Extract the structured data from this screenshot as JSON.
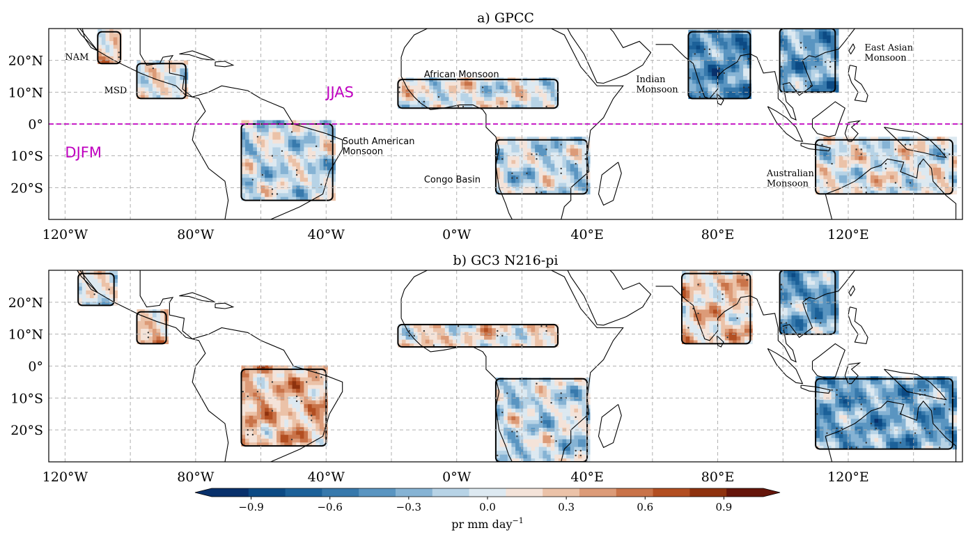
{
  "chart_data": [
    {
      "type": "heatmap",
      "panel": "a",
      "title": "a) GPCC",
      "projection": "equirectangular map, longitude 125°W–155°E, latitude 30°S–30°N",
      "xlim": [
        -125,
        155
      ],
      "ylim": [
        -30,
        30
      ],
      "xticks": [
        -120,
        -80,
        -40,
        0,
        40,
        80,
        120
      ],
      "xtick_labels": [
        "120°W",
        "80°W",
        "40°W",
        "0°W",
        "40°E",
        "80°E",
        "120°E"
      ],
      "yticks": [
        20,
        10,
        0,
        -10,
        -20
      ],
      "ytick_labels": [
        "20°N",
        "10°N",
        "0°",
        "10°S",
        "20°S"
      ],
      "grid": true,
      "equator_line": {
        "lat": 0,
        "color": "#c000c0",
        "style": "dashed"
      },
      "season_labels": [
        {
          "text": "JJAS",
          "lon": -40,
          "lat": 10
        },
        {
          "text": "DJFM",
          "lon": -120,
          "lat": -9
        }
      ],
      "region_labels": [
        {
          "text": "NAM",
          "lon": -120,
          "lat": 21,
          "font": "serif"
        },
        {
          "text": "MSD",
          "lon": -108,
          "lat": 10.5,
          "font": "serif"
        },
        {
          "text": "African Monsoon",
          "lon": -10,
          "lat": 15.5,
          "font": "sans"
        },
        {
          "text": "Indian",
          "lon": 55,
          "lat": 14,
          "font": "serif"
        },
        {
          "text": " Monsoon",
          "lon": 55,
          "lat": 10.8,
          "font": "serif"
        },
        {
          "text": "East Asian",
          "lon": 125,
          "lat": 24,
          "font": "serif"
        },
        {
          "text": " Monsoon",
          "lon": 125,
          "lat": 20.8,
          "font": "serif"
        },
        {
          "text": "South American",
          "lon": -35,
          "lat": -5.5,
          "font": "sans"
        },
        {
          "text": " Monsoon",
          "lon": -35,
          "lat": -8.7,
          "font": "sans"
        },
        {
          "text": "Congo Basin",
          "lon": -10,
          "lat": -17.5,
          "font": "sans"
        },
        {
          "text": "Australian",
          "lon": 95,
          "lat": -15.5,
          "font": "serif"
        },
        {
          "text": " Monsoon",
          "lon": 95,
          "lat": -18.7,
          "font": "serif"
        }
      ],
      "regions": [
        {
          "name": "NAM",
          "lon": [
            -110,
            -103
          ],
          "lat": [
            19,
            29
          ],
          "mean": 0.3
        },
        {
          "name": "MSD",
          "lon": [
            -98,
            -83
          ],
          "lat": [
            8,
            19
          ],
          "mean": 0.1
        },
        {
          "name": "South American Monsoon",
          "lon": [
            -66,
            -38
          ],
          "lat": [
            -24,
            0
          ],
          "mean": 0.0
        },
        {
          "name": "African Monsoon",
          "lon": [
            -18,
            31
          ],
          "lat": [
            5,
            14
          ],
          "mean": 0.1
        },
        {
          "name": "Congo Basin",
          "lon": [
            12,
            40
          ],
          "lat": [
            -22,
            -5
          ],
          "mean": 0.0
        },
        {
          "name": "Indian Monsoon",
          "lon": [
            71,
            90
          ],
          "lat": [
            8,
            29
          ],
          "mean": -0.4
        },
        {
          "name": "East Asian Monsoon",
          "lon": [
            99,
            116
          ],
          "lat": [
            10,
            30
          ],
          "mean": -0.3
        },
        {
          "name": "Australian Monsoon",
          "lon": [
            110,
            152
          ],
          "lat": [
            -22,
            -5
          ],
          "mean": 0.1
        }
      ]
    },
    {
      "type": "heatmap",
      "panel": "b",
      "title": "b) GC3 N216-pi",
      "projection": "equirectangular map, longitude 125°W–155°E, latitude 30°S–30°N",
      "xlim": [
        -125,
        155
      ],
      "ylim": [
        -30,
        30
      ],
      "xticks": [
        -120,
        -80,
        -40,
        0,
        40,
        80,
        120
      ],
      "xtick_labels": [
        "120°W",
        "80°W",
        "40°W",
        "0°W",
        "40°E",
        "80°E",
        "120°E"
      ],
      "yticks": [
        20,
        10,
        0,
        -10,
        -20
      ],
      "ytick_labels": [
        "20°N",
        "10°N",
        "0°",
        "10°S",
        "20°S"
      ],
      "grid": true,
      "regions": [
        {
          "name": "NAM",
          "lon": [
            -116,
            -105
          ],
          "lat": [
            19,
            29
          ],
          "mean": 0.1
        },
        {
          "name": "MSD",
          "lon": [
            -98,
            -89
          ],
          "lat": [
            7,
            17
          ],
          "mean": 0.4
        },
        {
          "name": "South American Monsoon",
          "lon": [
            -66,
            -40
          ],
          "lat": [
            -25,
            -1
          ],
          "mean": 0.4
        },
        {
          "name": "African Monsoon",
          "lon": [
            -18,
            31
          ],
          "lat": [
            6,
            13
          ],
          "mean": 0.2
        },
        {
          "name": "Congo Basin",
          "lon": [
            12,
            40
          ],
          "lat": [
            -30,
            -4
          ],
          "mean": 0.0
        },
        {
          "name": "Indian Monsoon",
          "lon": [
            69,
            90
          ],
          "lat": [
            7,
            29
          ],
          "mean": 0.3
        },
        {
          "name": "East Asian Monsoon",
          "lon": [
            99,
            116
          ],
          "lat": [
            10,
            30
          ],
          "mean": -0.3
        },
        {
          "name": "Australian Monsoon",
          "lon": [
            110,
            152
          ],
          "lat": [
            -26,
            -4
          ],
          "mean": -0.3
        }
      ]
    }
  ],
  "colorbar": {
    "label": "pr mm day",
    "label_sup": "−1",
    "vmin": -1.05,
    "vmax": 1.05,
    "step": 0.15,
    "extend": "both",
    "ticks": [
      -0.9,
      -0.6,
      -0.3,
      0.0,
      0.3,
      0.6,
      0.9
    ],
    "tick_labels": [
      "−0.9",
      "−0.6",
      "−0.3",
      "0.0",
      "0.3",
      "0.6",
      "0.9"
    ],
    "colors": [
      "#08306b",
      "#0c4a84",
      "#1c6199",
      "#3779ac",
      "#5a95c1",
      "#86b3d4",
      "#b7d3e6",
      "#dde9f1",
      "#f4e3d9",
      "#ebc2a8",
      "#dc9b78",
      "#c97349",
      "#b24e21",
      "#8e320e",
      "#65150a"
    ]
  }
}
